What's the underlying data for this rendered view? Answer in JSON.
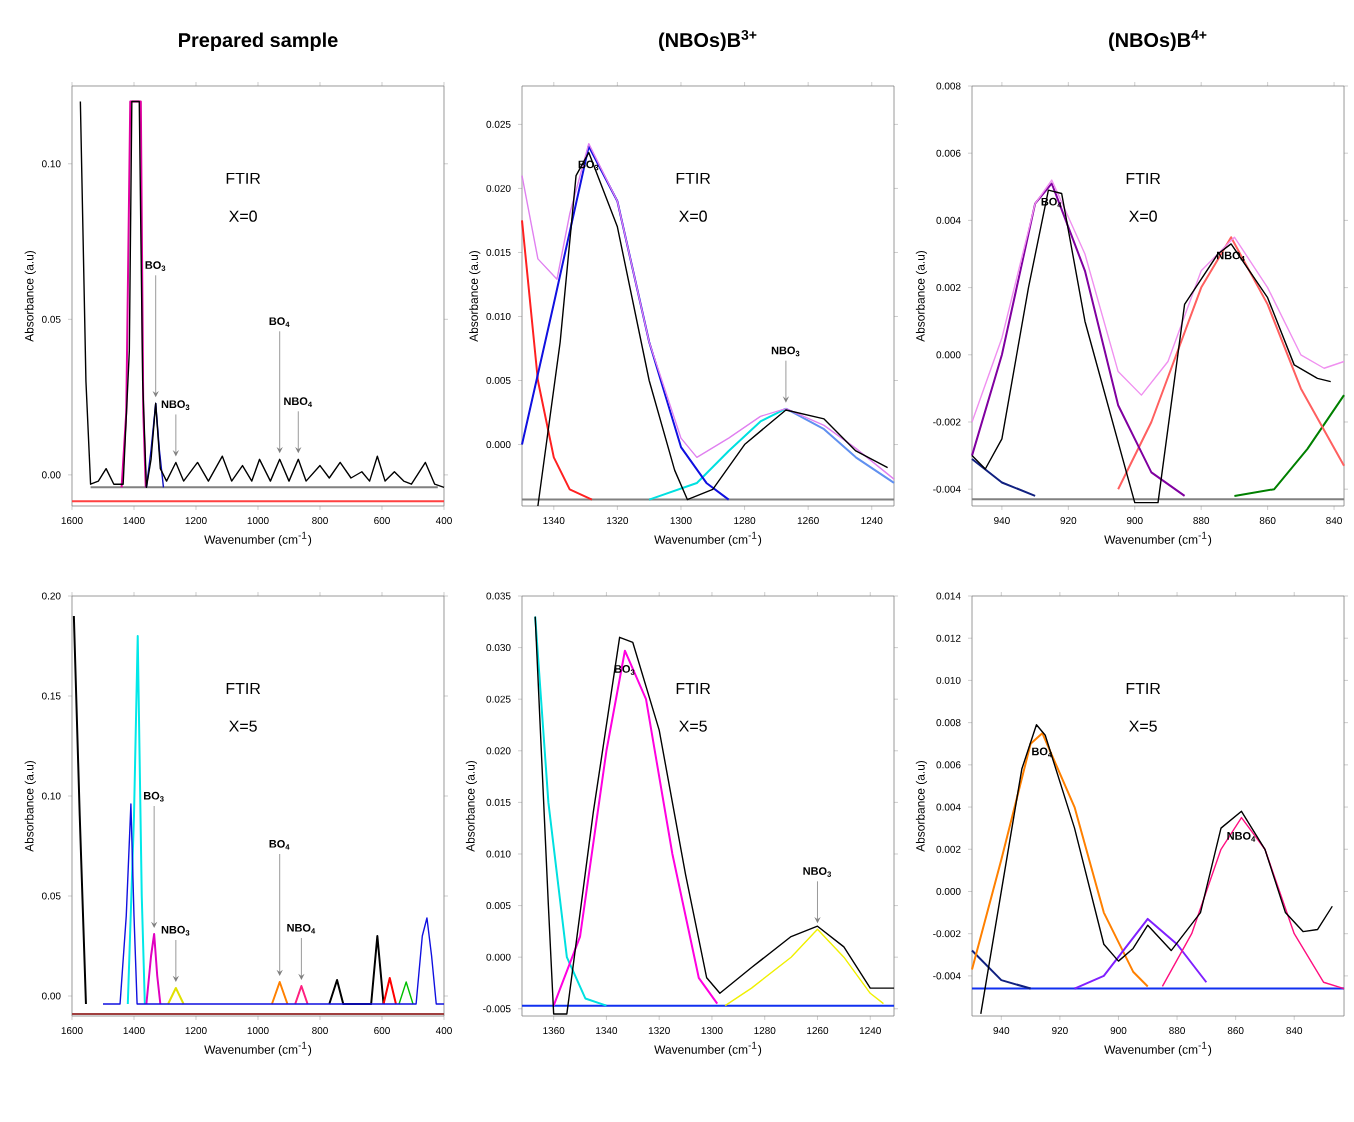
{
  "chart_data": [
    {
      "type": "line",
      "title": "Prepared sample",
      "xlabel": "Wavenumber (cm$^{-1}$)",
      "ylabel": "Absorbance (a.u)",
      "xlim": [
        1600,
        400
      ],
      "ylim": [
        -0.01,
        0.125
      ],
      "xticks": [
        1600,
        1400,
        1200,
        1000,
        800,
        600,
        400
      ],
      "yticks": [
        {
          "value": 0,
          "label": "0.00"
        },
        {
          "value": 0.05,
          "label": "0.05"
        },
        {
          "value": 0.1,
          "label": "0.10"
        }
      ],
      "series": [
        {
          "color": "#ff4040",
          "x": [
            1600,
            400
          ],
          "values": [
            -0.0085,
            -0.0085
          ]
        },
        {
          "color": "#808080",
          "x": [
            1540,
            420
          ],
          "values": [
            -0.004,
            -0.004
          ]
        },
        {
          "color": "#e000a0",
          "x": [
            1440,
            1425,
            1412,
            1378,
            1370,
            1362
          ],
          "values": [
            -0.004,
            0.02,
            0.12,
            0.12,
            0.02,
            -0.004
          ]
        },
        {
          "color": "#1010c0",
          "x": [
            1360,
            1345,
            1330,
            1318,
            1305
          ],
          "values": [
            -0.004,
            0.008,
            0.023,
            0.008,
            -0.004
          ]
        },
        {
          "color": "#000000",
          "x": [
            1573,
            1555,
            1540,
            1515,
            1490,
            1465,
            1435,
            1415,
            1407,
            1383,
            1372,
            1360,
            1345,
            1330,
            1315,
            1295,
            1265,
            1240,
            1195,
            1160,
            1115,
            1085,
            1050,
            1020,
            995,
            960,
            930,
            900,
            870,
            845,
            800,
            770,
            735,
            700,
            665,
            640,
            615,
            590,
            560,
            530,
            505,
            460,
            430,
            400
          ],
          "values": [
            0.12,
            0.03,
            -0.003,
            -0.002,
            0.002,
            -0.003,
            -0.003,
            0.04,
            0.12,
            0.12,
            0.03,
            -0.004,
            0.005,
            0.023,
            0.002,
            -0.002,
            0.004,
            -0.002,
            0.004,
            -0.002,
            0.006,
            -0.002,
            0.003,
            -0.002,
            0.005,
            -0.002,
            0.005,
            -0.002,
            0.005,
            -0.002,
            0.003,
            -0.001,
            0.004,
            -0.001,
            0.001,
            -0.002,
            0.006,
            -0.002,
            0.001,
            -0.002,
            -0.003,
            0.004,
            -0.003,
            -0.004
          ]
        }
      ],
      "annotations": [
        "FTIR",
        "X=0",
        {
          "text": "NBO$_{3}$",
          "x": 1265,
          "y": 0.004
        },
        {
          "text": "BO$_{3}$",
          "x": 1330,
          "y": 0.023
        },
        {
          "text": "NBO$_{4}$",
          "x": 870,
          "y": 0.005
        },
        {
          "text": "BO$_{4}$",
          "x": 930,
          "y": 0.005
        }
      ]
    },
    {
      "type": "line",
      "title": "(NBOs)B$^{3+}$",
      "xlabel": "Wavenumber (cm$^{-1}$)",
      "ylabel": "Absorbance (a.u)",
      "xlim": [
        1350,
        1233
      ],
      "ylim": [
        -0.0048,
        0.028
      ],
      "xticks": [
        1340,
        1320,
        1300,
        1280,
        1260,
        1240
      ],
      "yticks": [
        {
          "value": 0,
          "label": "0.000"
        },
        {
          "value": 0.005,
          "label": "0.005"
        },
        {
          "value": 0.01,
          "label": "0.010"
        },
        {
          "value": 0.015,
          "label": "0.015"
        },
        {
          "value": 0.02,
          "label": "0.020"
        },
        {
          "value": 0.025,
          "label": "0.025"
        }
      ],
      "series": [
        {
          "color": "#808080",
          "x": [
            1350,
            1233
          ],
          "values": [
            -0.0043,
            -0.0043
          ]
        },
        {
          "color": "#ff2020",
          "x": [
            1350,
            1345,
            1340,
            1335,
            1328
          ],
          "values": [
            0.0175,
            0.005,
            -0.001,
            -0.0035,
            -0.0043
          ]
        },
        {
          "color": "#00e0e0",
          "x": [
            1310,
            1295,
            1285,
            1275,
            1267
          ],
          "values": [
            -0.0043,
            -0.003,
            -0.0005,
            0.0018,
            0.0028
          ]
        },
        {
          "color": "#6090f0",
          "x": [
            1267,
            1255,
            1245,
            1233
          ],
          "values": [
            0.0028,
            0.0012,
            -0.001,
            -0.003
          ]
        },
        {
          "color": "#1010e0",
          "x": [
            1350,
            1340,
            1329,
            1320,
            1310,
            1300,
            1292,
            1285
          ],
          "values": [
            0.0,
            0.011,
            0.0233,
            0.019,
            0.008,
            -0.0002,
            -0.003,
            -0.0043
          ]
        },
        {
          "color": "#e080f0",
          "x": [
            1350,
            1345,
            1339,
            1335,
            1329,
            1320,
            1310,
            1300,
            1295,
            1285,
            1275,
            1267,
            1255,
            1245,
            1233
          ],
          "values": [
            0.021,
            0.0145,
            0.0129,
            0.018,
            0.0235,
            0.019,
            0.008,
            0.0005,
            -0.001,
            0.0005,
            0.0022,
            0.0028,
            0.0015,
            -0.0003,
            -0.0027
          ]
        },
        {
          "color": "#000000",
          "x": [
            1345,
            1338,
            1333,
            1329,
            1320,
            1310,
            1302,
            1298,
            1290,
            1280,
            1267,
            1255,
            1245,
            1235
          ],
          "values": [
            -0.0048,
            0.008,
            0.021,
            0.0228,
            0.017,
            0.005,
            -0.002,
            -0.0043,
            -0.0035,
            0.0,
            0.0027,
            0.002,
            -0.0005,
            -0.0018
          ]
        }
      ],
      "annotations": [
        "FTIR",
        "X=0",
        {
          "text": "BO$_{3}$",
          "x": 1329,
          "y": 0.0233
        },
        {
          "text": "NBO$_{3}$",
          "x": 1267,
          "y": 0.0028
        }
      ]
    },
    {
      "type": "line",
      "title": "(NBOs)B$^{4+}$",
      "xlabel": "Wavenumber (cm$^{-1}$)",
      "ylabel": "Absorbance (a.u)",
      "xlim": [
        949,
        837
      ],
      "ylim": [
        -0.0045,
        0.008
      ],
      "xticks": [
        940,
        920,
        900,
        880,
        860,
        840
      ],
      "yticks": [
        {
          "value": -0.004,
          "label": "-0.004"
        },
        {
          "value": -0.002,
          "label": "-0.002"
        },
        {
          "value": 0,
          "label": "0.000"
        },
        {
          "value": 0.002,
          "label": "0.002"
        },
        {
          "value": 0.004,
          "label": "0.004"
        },
        {
          "value": 0.006,
          "label": "0.006"
        },
        {
          "value": 0.008,
          "label": "0.008"
        }
      ],
      "series": [
        {
          "color": "#808080",
          "x": [
            949,
            837
          ],
          "values": [
            -0.0043,
            -0.0043
          ]
        },
        {
          "color": "#102080",
          "x": [
            949,
            940,
            930
          ],
          "values": [
            -0.0031,
            -0.0038,
            -0.0042
          ]
        },
        {
          "color": "#008000",
          "x": [
            870,
            858,
            848,
            837
          ],
          "values": [
            -0.0042,
            -0.004,
            -0.0028,
            -0.0012
          ]
        },
        {
          "color": "#ff6060",
          "x": [
            905,
            895,
            880,
            871,
            860,
            850,
            837
          ],
          "values": [
            -0.004,
            -0.002,
            0.002,
            0.0035,
            0.0015,
            -0.001,
            -0.0033
          ]
        },
        {
          "color": "#8000a0",
          "x": [
            949,
            940,
            930,
            925,
            915,
            905,
            895,
            885
          ],
          "values": [
            -0.003,
            0.0,
            0.0045,
            0.0051,
            0.0025,
            -0.0015,
            -0.0035,
            -0.0042
          ]
        },
        {
          "color": "#f090f0",
          "x": [
            949,
            940,
            930,
            925,
            915,
            905,
            898,
            890,
            880,
            870,
            860,
            850,
            843,
            837
          ],
          "values": [
            -0.002,
            0.0005,
            0.0045,
            0.0052,
            0.003,
            -0.0005,
            -0.0012,
            -0.0002,
            0.0025,
            0.0035,
            0.002,
            0.0,
            -0.0004,
            -0.0002
          ]
        },
        {
          "color": "#000000",
          "x": [
            949,
            945,
            940,
            932,
            926,
            922,
            915,
            900,
            893,
            885,
            875,
            871,
            860,
            852,
            845,
            841
          ],
          "values": [
            -0.003,
            -0.0034,
            -0.0025,
            0.002,
            0.0049,
            0.0048,
            0.001,
            -0.0044,
            -0.0044,
            0.0015,
            0.003,
            0.0033,
            0.0017,
            -0.0003,
            -0.0007,
            -0.0008
          ]
        }
      ],
      "annotations": [
        "FTIR",
        "X=0",
        {
          "text": "BO$_{4}$",
          "x": 925,
          "y": 0.0051
        },
        {
          "text": "NBO$_{4}$",
          "x": 871,
          "y": 0.0035
        }
      ]
    },
    {
      "type": "line",
      "xlabel": "Wavenumber (cm$^{-1}$)",
      "ylabel": "Absorbance (a.u)",
      "xlim": [
        1600,
        400
      ],
      "ylim": [
        -0.01,
        0.2
      ],
      "xticks": [
        1600,
        1400,
        1200,
        1000,
        800,
        600,
        400
      ],
      "yticks": [
        {
          "value": 0,
          "label": "0.00"
        },
        {
          "value": 0.05,
          "label": "0.05"
        },
        {
          "value": 0.1,
          "label": "0.10"
        },
        {
          "value": 0.15,
          "label": "0.15"
        },
        {
          "value": 0.2,
          "label": "0.20"
        }
      ],
      "series": [
        {
          "color": "#a04040",
          "x": [
            1600,
            400
          ],
          "values": [
            -0.009,
            -0.009
          ]
        },
        {
          "color": "#000000",
          "x": [
            1594,
            1575,
            1555,
            1000,
            770,
            745,
            725,
            635,
            615,
            595
          ],
          "values": [
            0.19,
            0.09,
            -0.004,
            null,
            -0.004,
            0.008,
            -0.004,
            -0.004,
            0.03,
            -0.004
          ]
        },
        {
          "color": "#00e8e8",
          "x": [
            1420,
            1400,
            1388,
            1375,
            1365
          ],
          "values": [
            -0.004,
            0.09,
            0.18,
            0.05,
            -0.004
          ]
        },
        {
          "color": "#e000c0",
          "x": [
            1360,
            1345,
            1335,
            1325,
            1315
          ],
          "values": [
            -0.004,
            0.02,
            0.031,
            0.01,
            -0.004
          ]
        },
        {
          "color": "#e0e000",
          "x": [
            1290,
            1265,
            1240
          ],
          "values": [
            -0.004,
            0.004,
            -0.004
          ]
        },
        {
          "color": "#ff8000",
          "x": [
            955,
            930,
            905
          ],
          "values": [
            -0.004,
            0.007,
            -0.004
          ]
        },
        {
          "color": "#ff2080",
          "x": [
            880,
            860,
            840
          ],
          "values": [
            -0.004,
            0.005,
            -0.004
          ]
        },
        {
          "color": "#ff0000",
          "x": [
            595,
            575,
            555
          ],
          "values": [
            -0.004,
            0.009,
            -0.004
          ]
        },
        {
          "color": "#00c000",
          "x": [
            545,
            522,
            500
          ],
          "values": [
            -0.004,
            0.007,
            -0.004
          ]
        },
        {
          "color": "#1010e0",
          "x": [
            1500,
            1445,
            1425,
            1410,
            1400,
            1390,
            490,
            470,
            455,
            440,
            425,
            400
          ],
          "values": [
            -0.004,
            -0.004,
            0.04,
            0.096,
            0.04,
            -0.004,
            -0.004,
            0.03,
            0.039,
            0.02,
            -0.004,
            -0.004
          ]
        }
      ],
      "annotations": [
        "FTIR",
        "X=5",
        {
          "text": "NBO$_{3}$",
          "x": 1265,
          "y": 0.004
        },
        {
          "text": "BO$_{3}$",
          "x": 1335,
          "y": 0.031
        },
        {
          "text": "NBO$_{4}$",
          "x": 860,
          "y": 0.005
        },
        {
          "text": "BO$_{4}$",
          "x": 930,
          "y": 0.007
        }
      ]
    },
    {
      "type": "line",
      "xlabel": "Wavenumber (cm$^{-1}$)",
      "ylabel": "Absorbance (a.u)",
      "xlim": [
        1372,
        1231
      ],
      "ylim": [
        -0.0057,
        0.035
      ],
      "xticks": [
        1360,
        1340,
        1320,
        1300,
        1280,
        1260,
        1240
      ],
      "yticks": [
        {
          "value": -0.005,
          "label": "-0.005"
        },
        {
          "value": 0,
          "label": "0.000"
        },
        {
          "value": 0.005,
          "label": "0.005"
        },
        {
          "value": 0.01,
          "label": "0.010"
        },
        {
          "value": 0.015,
          "label": "0.015"
        },
        {
          "value": 0.02,
          "label": "0.020"
        },
        {
          "value": 0.025,
          "label": "0.025"
        },
        {
          "value": 0.03,
          "label": "0.030"
        },
        {
          "value": 0.035,
          "label": "0.035"
        }
      ],
      "series": [
        {
          "color": "#1030f0",
          "x": [
            1372,
            1231
          ],
          "values": [
            -0.0047,
            -0.0047
          ]
        },
        {
          "color": "#00e0e0",
          "x": [
            1367,
            1362,
            1355,
            1348,
            1340
          ],
          "values": [
            0.033,
            0.015,
            0.0,
            -0.004,
            -0.0047
          ]
        },
        {
          "color": "#ff00e0",
          "x": [
            1360,
            1350,
            1340,
            1333,
            1325,
            1315,
            1305,
            1298
          ],
          "values": [
            -0.0047,
            0.002,
            0.02,
            0.0297,
            0.025,
            0.01,
            -0.002,
            -0.0045
          ]
        },
        {
          "color": "#f0f000",
          "x": [
            1295,
            1285,
            1270,
            1260,
            1250,
            1240,
            1235
          ],
          "values": [
            -0.0047,
            -0.003,
            0.0,
            0.0027,
            0.0,
            -0.0035,
            -0.0045
          ]
        },
        {
          "color": "#000000",
          "x": [
            1367,
            1362,
            1360,
            1355,
            1345,
            1335,
            1330,
            1320,
            1310,
            1302,
            1297,
            1285,
            1270,
            1260,
            1250,
            1240,
            1231
          ],
          "values": [
            0.033,
            0.005,
            -0.0055,
            -0.0055,
            0.014,
            0.031,
            0.0305,
            0.022,
            0.008,
            -0.002,
            -0.0035,
            -0.001,
            0.002,
            0.003,
            0.001,
            -0.003,
            -0.003
          ]
        }
      ],
      "annotations": [
        "FTIR",
        "X=5",
        {
          "text": "BO$_{3}$",
          "x": 1333,
          "y": 0.0297
        },
        {
          "text": "NBO$_{3}$",
          "x": 1260,
          "y": 0.0027
        }
      ]
    },
    {
      "type": "line",
      "xlabel": "Wavenumber (cm$^{-1}$)",
      "ylabel": "Absorbance (a.u)",
      "xlim": [
        950,
        823
      ],
      "ylim": [
        -0.0059,
        0.014
      ],
      "xticks": [
        940,
        920,
        900,
        880,
        860,
        840
      ],
      "yticks": [
        {
          "value": -0.004,
          "label": "-0.004"
        },
        {
          "value": -0.002,
          "label": "-0.002"
        },
        {
          "value": 0,
          "label": "0.000"
        },
        {
          "value": 0.002,
          "label": "0.002"
        },
        {
          "value": 0.004,
          "label": "0.004"
        },
        {
          "value": 0.006,
          "label": "0.006"
        },
        {
          "value": 0.008,
          "label": "0.008"
        },
        {
          "value": 0.01,
          "label": "0.010"
        },
        {
          "value": 0.012,
          "label": "0.012"
        },
        {
          "value": 0.014,
          "label": "0.014"
        }
      ],
      "series": [
        {
          "color": "#1030f0",
          "x": [
            950,
            823
          ],
          "values": [
            -0.0046,
            -0.0046
          ]
        },
        {
          "color": "#102080",
          "x": [
            950,
            940,
            930
          ],
          "values": [
            -0.0028,
            -0.0042,
            -0.0046
          ]
        },
        {
          "color": "#ff8000",
          "x": [
            950,
            940,
            930,
            926,
            915,
            905,
            895,
            890
          ],
          "values": [
            -0.0037,
            0.0015,
            0.007,
            0.0075,
            0.004,
            -0.001,
            -0.0038,
            -0.0045
          ]
        },
        {
          "color": "#8020ff",
          "x": [
            915,
            905,
            895,
            890,
            880,
            870
          ],
          "values": [
            -0.0046,
            -0.004,
            -0.0022,
            -0.0013,
            -0.0025,
            -0.0043
          ]
        },
        {
          "color": "#ff1080",
          "x": [
            885,
            875,
            865,
            858,
            850,
            840,
            830,
            823
          ],
          "values": [
            -0.0045,
            -0.002,
            0.002,
            0.0035,
            0.002,
            -0.002,
            -0.0043,
            -0.0046
          ]
        },
        {
          "color": "#000000",
          "x": [
            947,
            940,
            933,
            928,
            925,
            915,
            905,
            900,
            895,
            890,
            882,
            872,
            865,
            858,
            850,
            843,
            837,
            832,
            827
          ],
          "values": [
            -0.0058,
            0.0,
            0.0058,
            0.0079,
            0.0074,
            0.003,
            -0.0025,
            -0.0033,
            -0.0027,
            -0.0016,
            -0.0028,
            -0.001,
            0.003,
            0.0038,
            0.002,
            -0.001,
            -0.0019,
            -0.0018,
            -0.0007
          ]
        }
      ],
      "annotations": [
        "FTIR",
        "X=5",
        {
          "text": "BO$_{4}$",
          "x": 926,
          "y": 0.0075
        },
        {
          "text": "NBO$_{4}$",
          "x": 858,
          "y": 0.0035
        }
      ]
    }
  ]
}
